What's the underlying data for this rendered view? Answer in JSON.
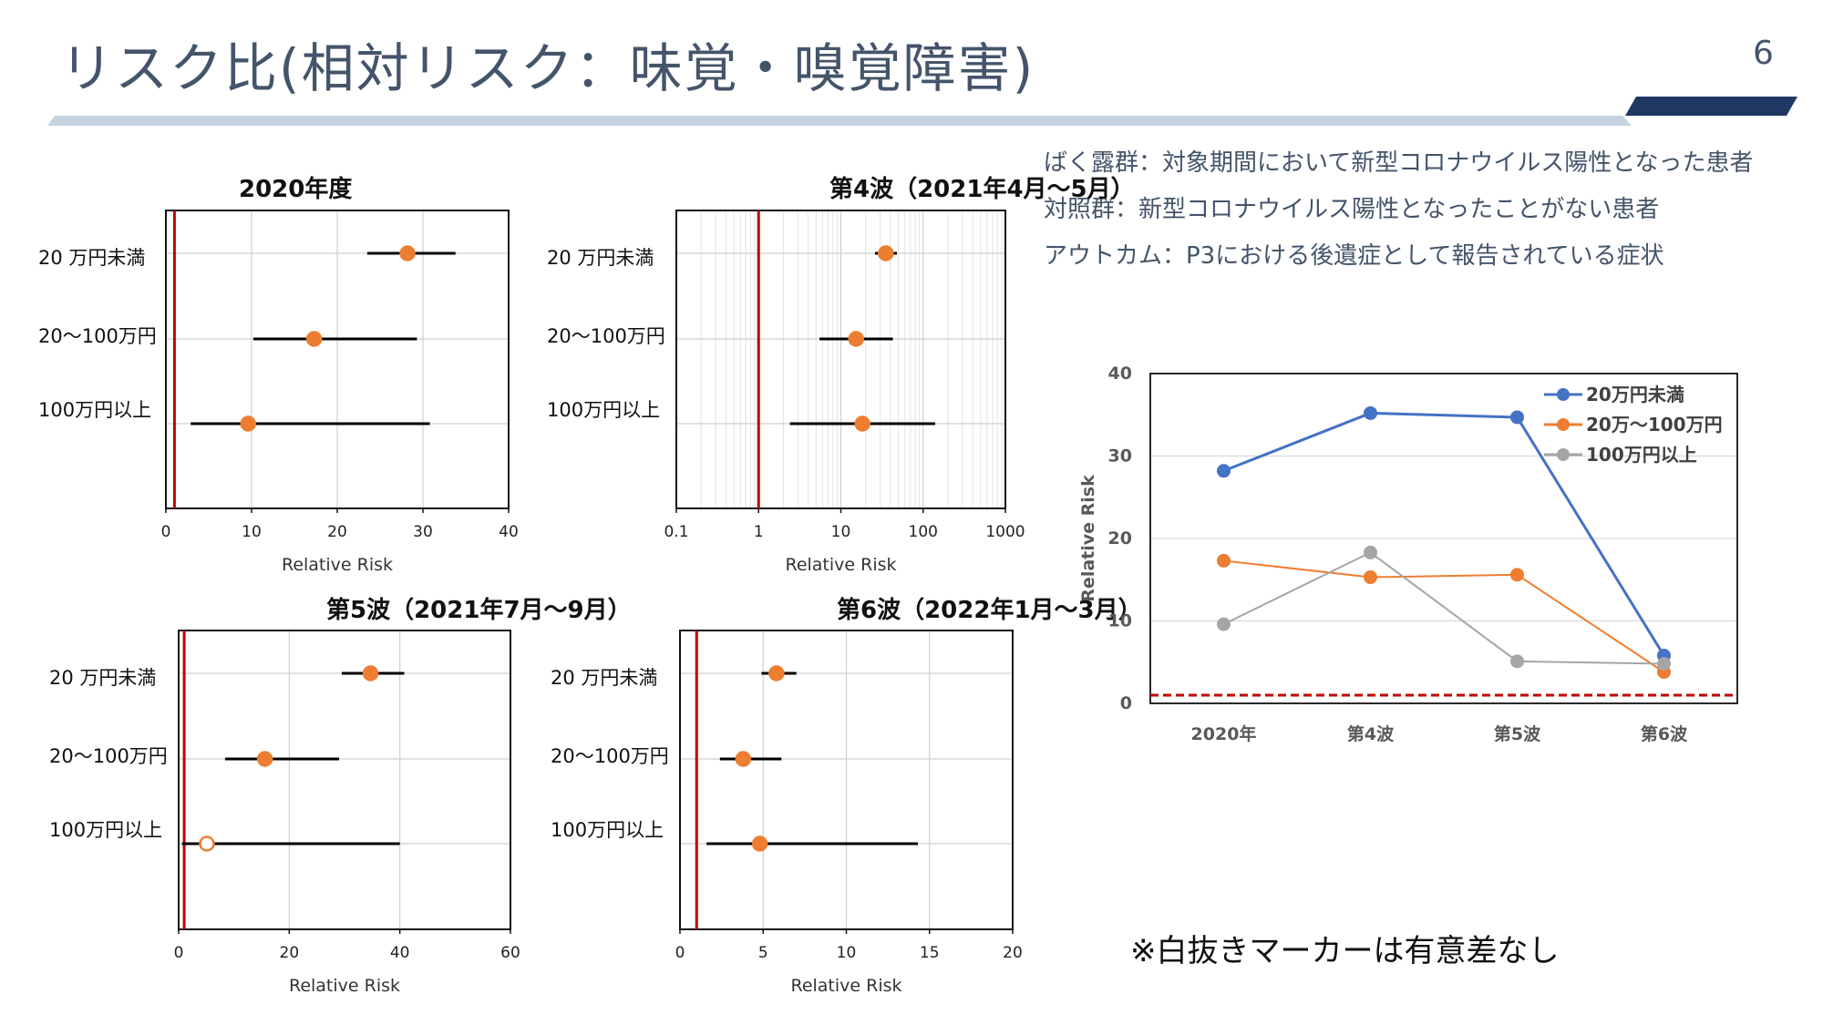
{
  "slide": {
    "title": "リスク比(相対リスク：味覚・嗅覚障害)",
    "page_number": "6",
    "notes": [
      "ばく露群：対象期間において新型コロナウイルス陽性となった患者",
      "対照群：新型コロナウイルス陽性となったことがない患者",
      "アウトカム：P3における後遺症として報告されている症状"
    ],
    "footnote": "※白抜きマーカーは有意差なし"
  },
  "colors": {
    "title": "#44546a",
    "accent_bar": "#c5d3e0",
    "accent_dark": "#1f3864",
    "marker": "#ed7d31",
    "reference_line": "#c00000",
    "series_blue": "#4472c4",
    "series_orange": "#ed7d31",
    "series_gray": "#a5a5a5"
  },
  "chart_data": [
    {
      "type": "forest",
      "title": "2020年度",
      "xlabel": "Relative Risk",
      "scale": "linear",
      "xlim": [
        0,
        40
      ],
      "xticks": [
        "0",
        "10",
        "20",
        "30",
        "40"
      ],
      "tick_values": [
        0,
        10,
        20,
        30,
        40
      ],
      "reference": 1,
      "rows": [
        {
          "label": "20 万円未満",
          "estimate": 28.2,
          "lower": 23.5,
          "upper": 33.8,
          "significant": true
        },
        {
          "label": "20〜100万円",
          "estimate": 17.3,
          "lower": 10.2,
          "upper": 29.3,
          "significant": true
        },
        {
          "label": "100万円以上",
          "estimate": 9.6,
          "lower": 2.9,
          "upper": 30.8,
          "significant": true
        }
      ]
    },
    {
      "type": "forest",
      "title": "第4波（2021年4月〜5月）",
      "xlabel": "Relative Risk",
      "scale": "log",
      "xlim": [
        0.1,
        1000
      ],
      "xticks": [
        "0.1",
        "1",
        "10",
        "100",
        "1000"
      ],
      "tick_values": [
        0.1,
        1,
        10,
        100,
        1000
      ],
      "reference": 1,
      "rows": [
        {
          "label": "20 万円未満",
          "estimate": 35.2,
          "lower": 26,
          "upper": 48,
          "significant": true
        },
        {
          "label": "20〜100万円",
          "estimate": 15.3,
          "lower": 5.5,
          "upper": 43,
          "significant": true
        },
        {
          "label": "100万円以上",
          "estimate": 18.3,
          "lower": 2.4,
          "upper": 140,
          "significant": true
        }
      ]
    },
    {
      "type": "forest",
      "title": "第5波（2021年7月〜9月）",
      "xlabel": "Relative Risk",
      "scale": "linear",
      "xlim": [
        0,
        60
      ],
      "xticks": [
        "0",
        "20",
        "40",
        "60"
      ],
      "tick_values": [
        0,
        20,
        40,
        60
      ],
      "reference": 1,
      "rows": [
        {
          "label": "20 万円未満",
          "estimate": 34.7,
          "lower": 29.5,
          "upper": 40.8,
          "significant": true
        },
        {
          "label": "20〜100万円",
          "estimate": 15.6,
          "lower": 8.4,
          "upper": 29,
          "significant": true
        },
        {
          "label": "100万円以上",
          "estimate": 5.1,
          "lower": 0.6,
          "upper": 40,
          "significant": false
        }
      ]
    },
    {
      "type": "forest",
      "title": "第6波（2022年1月〜3月）",
      "xlabel": "Relative Risk",
      "scale": "linear",
      "xlim": [
        0,
        20
      ],
      "xticks": [
        "0",
        "5",
        "10",
        "15",
        "20"
      ],
      "tick_values": [
        0,
        5,
        10,
        15,
        20
      ],
      "reference": 1,
      "rows": [
        {
          "label": "20 万円未満",
          "estimate": 5.8,
          "lower": 4.9,
          "upper": 7,
          "significant": true
        },
        {
          "label": "20〜100万円",
          "estimate": 3.8,
          "lower": 2.4,
          "upper": 6.1,
          "significant": true
        },
        {
          "label": "100万円以上",
          "estimate": 4.8,
          "lower": 1.6,
          "upper": 14.3,
          "significant": true
        }
      ]
    },
    {
      "type": "line",
      "title": "",
      "ylabel": "Relative Risk",
      "categories": [
        "2020年",
        "第4波",
        "第5波",
        "第6波"
      ],
      "ylim": [
        0,
        40
      ],
      "yticks": [
        "0",
        "10",
        "20",
        "30",
        "40"
      ],
      "tick_values": [
        0,
        10,
        20,
        30,
        40
      ],
      "reference": 1,
      "series": [
        {
          "name": "20万円未満",
          "color": "#4472c4",
          "values": [
            28.2,
            35.2,
            34.7,
            5.8
          ]
        },
        {
          "name": "20万〜100万円",
          "color": "#ed7d31",
          "values": [
            17.3,
            15.3,
            15.6,
            3.8
          ]
        },
        {
          "name": "100万円以上",
          "color": "#a5a5a5",
          "values": [
            9.6,
            18.3,
            5.1,
            4.8
          ]
        }
      ]
    }
  ]
}
